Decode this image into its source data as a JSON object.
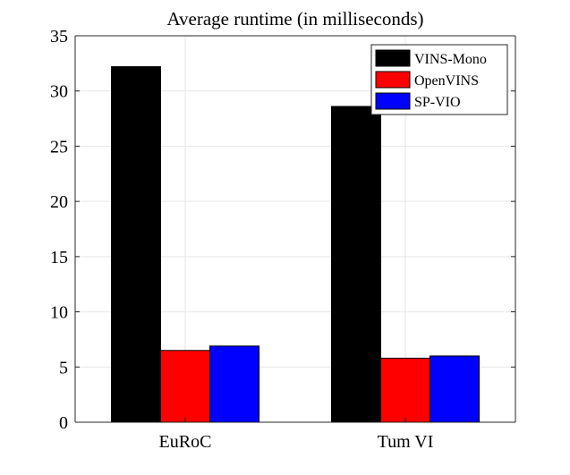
{
  "chart_data": {
    "type": "bar",
    "title": "Average runtime (in milliseconds)",
    "xlabel": "",
    "ylabel": "",
    "categories": [
      "EuRoC",
      "Tum VI"
    ],
    "series": [
      {
        "name": "VINS-Mono",
        "color": "#000000",
        "values": [
          32.2,
          28.6
        ]
      },
      {
        "name": "OpenVINS",
        "color": "#ff0000",
        "values": [
          6.5,
          5.8
        ]
      },
      {
        "name": "SP-VIO",
        "color": "#0000ff",
        "values": [
          6.9,
          6.0
        ]
      }
    ],
    "ylim": [
      0,
      35
    ],
    "yticks": [
      0,
      5,
      10,
      15,
      20,
      25,
      30,
      35
    ],
    "grid": true,
    "legend_position": "top-right"
  }
}
